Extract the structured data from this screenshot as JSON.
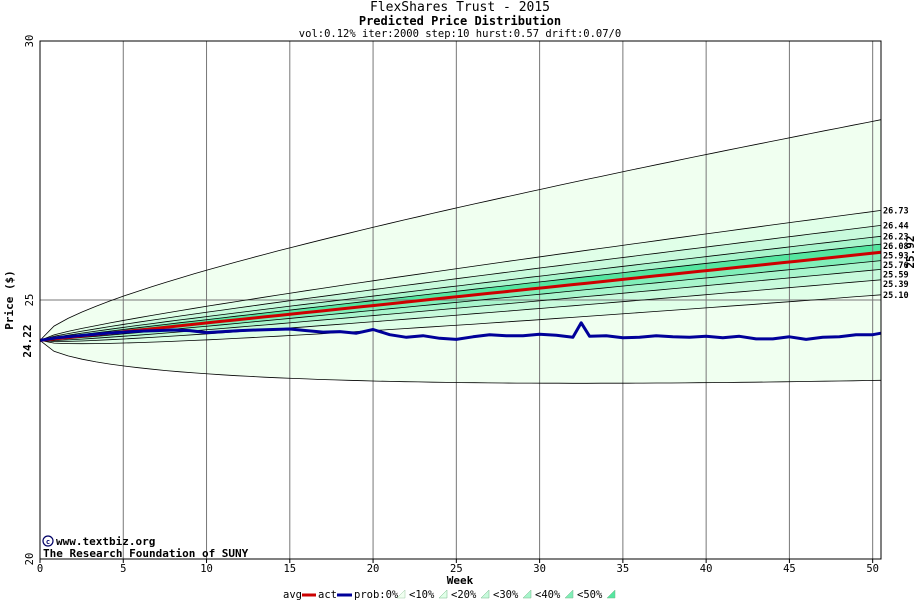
{
  "header": {
    "title": "FlexShares Trust - 2015",
    "subtitle": "Predicted Price Distribution",
    "params": "vol:0.12% iter:2000 step:10 hurst:0.57 drift:0.07/0"
  },
  "credits": {
    "line1": "www.textbiz.org",
    "line2": "The Research Foundation of SUNY"
  },
  "legend": {
    "avg_label": "avg",
    "act_label": "act",
    "prob_label": "prob:0%",
    "bands": [
      "<10%",
      "<20%",
      "<30%",
      "<40%",
      "<50%"
    ],
    "colors": {
      "avg": "#cc0000",
      "act": "#000099",
      "band0": "#f0fff0",
      "band10": "#e0ffe8",
      "band20": "#c8fadc",
      "band30": "#a8f5cc",
      "band40": "#80eeb8",
      "band50": "#55e6a0"
    }
  },
  "chart_data": {
    "type": "line",
    "xlabel": "Week",
    "ylabel": "Price ($)",
    "xlim": [
      0,
      50.5
    ],
    "ylim": [
      20,
      30
    ],
    "xticks": [
      0,
      5,
      10,
      15,
      20,
      25,
      30,
      35,
      40,
      45,
      50
    ],
    "yticks": [
      20,
      25,
      30
    ],
    "start_price": "24.22",
    "start_value": 24.22,
    "end_avg_label": "25.92",
    "end_avg_value": 25.92,
    "percentile_end_values": [
      26.73,
      26.44,
      26.23,
      26.08,
      25.93,
      25.76,
      25.59,
      25.39,
      25.1
    ],
    "percentile_end_labels": [
      "26.73",
      "26.44",
      "26.23",
      "26.08",
      "25.93",
      "25.76",
      "25.59",
      "25.39",
      "25.10"
    ],
    "outer_upper_end": 28.48,
    "outer_lower_end": 23.45,
    "actual_series": {
      "x": [
        0,
        1,
        2,
        3,
        4,
        5,
        6,
        7,
        8,
        9,
        10,
        11,
        12,
        13,
        14,
        15,
        16,
        17,
        18,
        19,
        20,
        21,
        22,
        23,
        24,
        25,
        26,
        27,
        28,
        29,
        30,
        31,
        32,
        32.5,
        33,
        34,
        35,
        36,
        37,
        38,
        39,
        40,
        41,
        42,
        43,
        44,
        45,
        46,
        47,
        48,
        49,
        50,
        50.5
      ],
      "values": [
        24.22,
        24.27,
        24.3,
        24.33,
        24.36,
        24.38,
        24.4,
        24.41,
        24.42,
        24.41,
        24.37,
        24.39,
        24.41,
        24.42,
        24.43,
        24.44,
        24.41,
        24.38,
        24.39,
        24.36,
        24.43,
        24.33,
        24.28,
        24.31,
        24.26,
        24.24,
        24.29,
        24.33,
        24.31,
        24.31,
        24.34,
        24.32,
        24.28,
        24.56,
        24.3,
        24.31,
        24.27,
        24.28,
        24.31,
        24.29,
        24.28,
        24.3,
        24.27,
        24.3,
        24.25,
        24.25,
        24.29,
        24.24,
        24.28,
        24.29,
        24.33,
        24.33,
        24.36
      ]
    }
  }
}
